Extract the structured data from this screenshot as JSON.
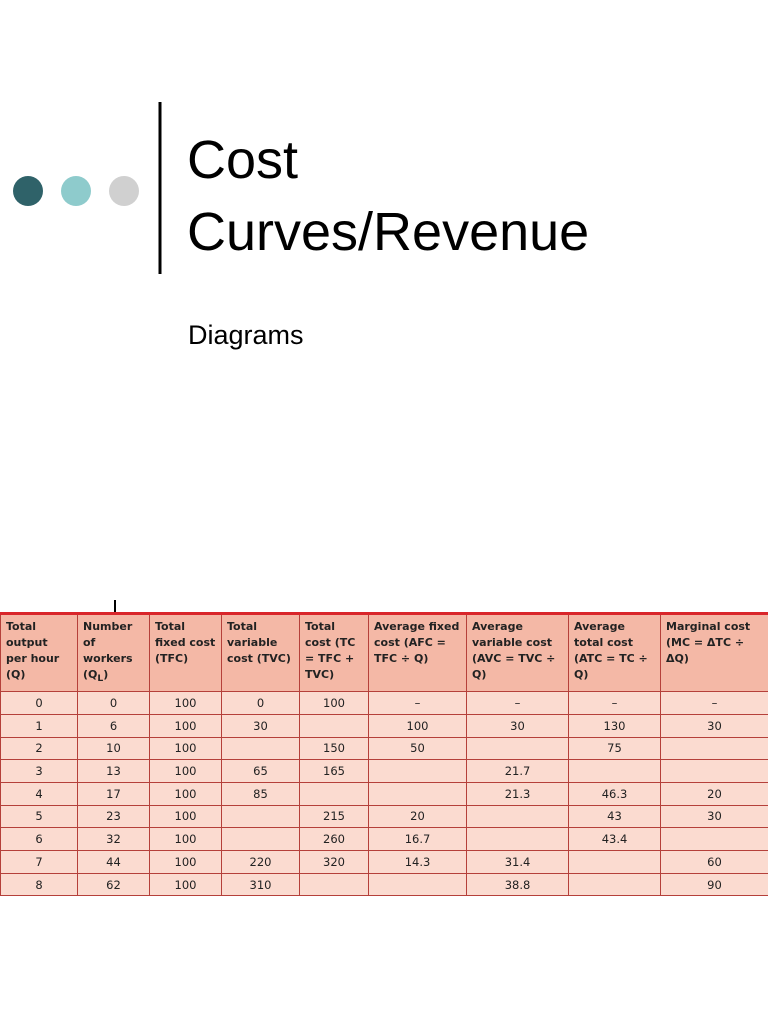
{
  "header": {
    "title": "Cost Curves/Revenue",
    "subtitle": "Diagrams"
  },
  "table": {
    "header": [
      "Total output per hour (Q)",
      [
        "Number of workers (Q",
        "L",
        ")"
      ],
      "Total fixed cost (TFC)",
      "Total variable cost (TVC)",
      "Total cost (TC = TFC + TVC)",
      "Average fixed cost (AFC = TFC ÷ Q)",
      "Average variable cost (AVC = TVC ÷ Q)",
      "Average total cost (ATC = TC ÷ Q)",
      "Marginal cost (MC = ΔTC ÷ ΔQ)"
    ],
    "rows": [
      [
        0,
        0,
        100,
        0,
        100,
        "–",
        "–",
        "–",
        "–"
      ],
      [
        1,
        6,
        100,
        30,
        null,
        100,
        30,
        130,
        30
      ],
      [
        2,
        10,
        100,
        null,
        150,
        50,
        null,
        75,
        null
      ],
      [
        3,
        13,
        100,
        65,
        165,
        null,
        21.7,
        null,
        null
      ],
      [
        4,
        17,
        100,
        85,
        null,
        null,
        21.3,
        46.3,
        20
      ],
      [
        5,
        23,
        100,
        null,
        215,
        20,
        null,
        43,
        30
      ],
      [
        6,
        32,
        100,
        null,
        260,
        16.7,
        null,
        43.4,
        null
      ],
      [
        7,
        44,
        100,
        220,
        320,
        14.3,
        31.4,
        null,
        60
      ],
      [
        8,
        62,
        100,
        310,
        null,
        null,
        38.8,
        null,
        90
      ]
    ]
  }
}
